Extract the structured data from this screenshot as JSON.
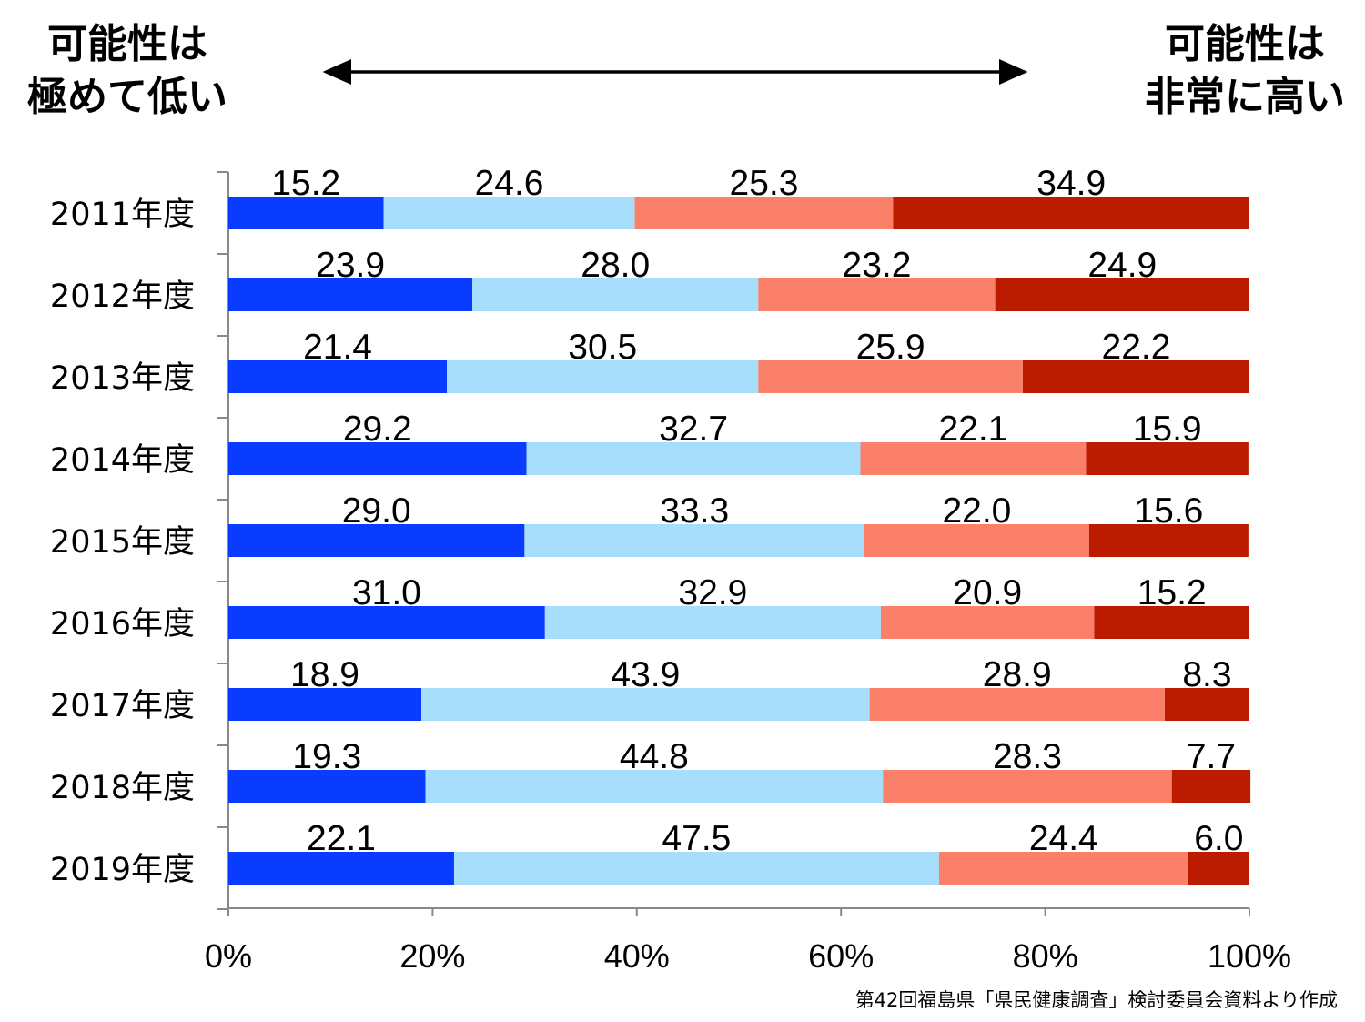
{
  "header": {
    "left_line1": "可能性は",
    "left_line2": "極めて低い",
    "right_line1": "可能性は",
    "right_line2": "非常に高い"
  },
  "source_note": "第42回福島県「県民健康調査」検討委員会資料より作成",
  "colors": {
    "series1": "#0a3cff",
    "series2": "#a6defc",
    "series3": "#fb806a",
    "series4": "#bb1c00",
    "arrow": "#000000",
    "axis": "#888888"
  },
  "chart_data": {
    "type": "bar",
    "orientation": "horizontal",
    "stacked": true,
    "percent_stacked": true,
    "categories": [
      "2011年度",
      "2012年度",
      "2013年度",
      "2014年度",
      "2015年度",
      "2016年度",
      "2017年度",
      "2018年度",
      "2019年度"
    ],
    "series": [
      {
        "name": "series1",
        "values": [
          15.2,
          23.9,
          21.4,
          29.2,
          29.0,
          31.0,
          18.9,
          19.3,
          22.1
        ]
      },
      {
        "name": "series2",
        "values": [
          24.6,
          28.0,
          30.5,
          32.7,
          33.3,
          32.9,
          43.9,
          44.8,
          47.5
        ]
      },
      {
        "name": "series3",
        "values": [
          25.3,
          23.2,
          25.9,
          22.1,
          22.0,
          20.9,
          28.9,
          28.3,
          24.4
        ]
      },
      {
        "name": "series4",
        "values": [
          34.9,
          24.9,
          22.2,
          15.9,
          15.6,
          15.2,
          8.3,
          7.7,
          6.0
        ]
      }
    ],
    "value_labels": [
      [
        "15.2",
        "24.6",
        "25.3",
        "34.9"
      ],
      [
        "23.9",
        "28.0",
        "23.2",
        "24.9"
      ],
      [
        "21.4",
        "30.5",
        "25.9",
        "22.2"
      ],
      [
        "29.2",
        "32.7",
        "22.1",
        "15.9"
      ],
      [
        "29.0",
        "33.3",
        "22.0",
        "15.6"
      ],
      [
        "31.0",
        "32.9",
        "20.9",
        "15.2"
      ],
      [
        "18.9",
        "43.9",
        "28.9",
        "8.3"
      ],
      [
        "19.3",
        "44.8",
        "28.3",
        "7.7"
      ],
      [
        "22.1",
        "47.5",
        "24.4",
        "6.0"
      ]
    ],
    "x_ticks": [
      "0%",
      "20%",
      "40%",
      "60%",
      "80%",
      "100%"
    ],
    "xlim": [
      0,
      100
    ],
    "title": "",
    "xlabel": "",
    "ylabel": "",
    "grid": false,
    "legend": "none"
  }
}
